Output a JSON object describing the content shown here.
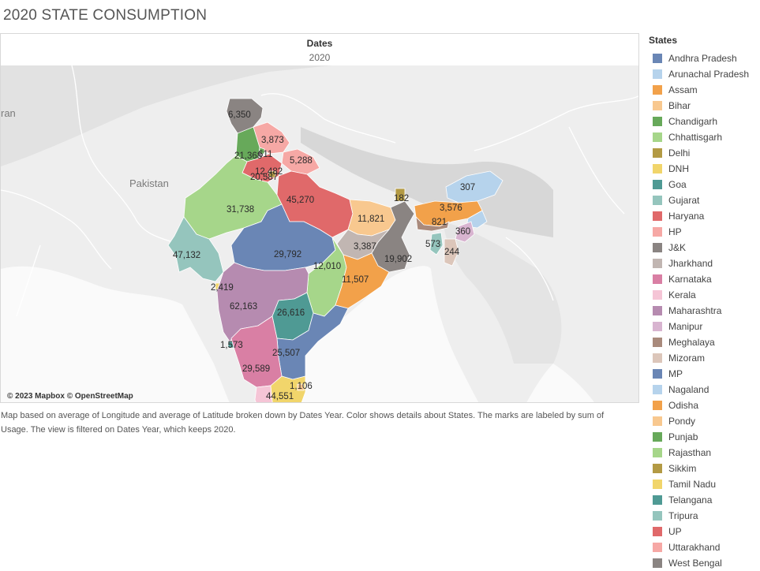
{
  "title": "2020 STATE CONSUMPTION",
  "header": {
    "dates_label": "Dates",
    "dates_value": "2020"
  },
  "map": {
    "country_labels": {
      "pakistan": "Pakistan",
      "iran_partial": "ran"
    },
    "attribution": "© 2023 Mapbox © OpenStreetMap"
  },
  "caption": "Map based on average of Longitude and average of Latitude broken down by Dates Year.  Color shows details about States.  The marks are labeled by sum of Usage. The view is filtered on Dates Year, which keeps 2020.",
  "legend": {
    "title": "States",
    "items": [
      {
        "name": "Andhra Pradesh",
        "color": "#6a86b5"
      },
      {
        "name": "Arunachal Pradesh",
        "color": "#b6d3ec"
      },
      {
        "name": "Assam",
        "color": "#f2a14a"
      },
      {
        "name": "Bihar",
        "color": "#f8c88f"
      },
      {
        "name": "Chandigarh",
        "color": "#67a95a"
      },
      {
        "name": "Chhattisgarh",
        "color": "#a6d68a"
      },
      {
        "name": "Delhi",
        "color": "#b39a44"
      },
      {
        "name": "DNH",
        "color": "#f1d56b"
      },
      {
        "name": "Goa",
        "color": "#4f9a94"
      },
      {
        "name": "Gujarat",
        "color": "#95c5bd"
      },
      {
        "name": "Haryana",
        "color": "#e0696a"
      },
      {
        "name": "HP",
        "color": "#f6a8a5"
      },
      {
        "name": "J&K",
        "color": "#8a8482"
      },
      {
        "name": "Jharkhand",
        "color": "#c1b6b2"
      },
      {
        "name": "Karnataka",
        "color": "#d97fa4"
      },
      {
        "name": "Kerala",
        "color": "#f5c5d6"
      },
      {
        "name": "Maharashtra",
        "color": "#b68bb0"
      },
      {
        "name": "Manipur",
        "color": "#d8b4d0"
      },
      {
        "name": "Meghalaya",
        "color": "#a98a7c"
      },
      {
        "name": "Mizoram",
        "color": "#dcc6ba"
      },
      {
        "name": "MP",
        "color": "#6a86b5"
      },
      {
        "name": "Nagaland",
        "color": "#b6d3ec"
      },
      {
        "name": "Odisha",
        "color": "#f2a14a"
      },
      {
        "name": "Pondy",
        "color": "#f8c88f"
      },
      {
        "name": "Punjab",
        "color": "#67a95a"
      },
      {
        "name": "Rajasthan",
        "color": "#a6d68a"
      },
      {
        "name": "Sikkim",
        "color": "#b39a44"
      },
      {
        "name": "Tamil Nadu",
        "color": "#f1d56b"
      },
      {
        "name": "Telangana",
        "color": "#4f9a94"
      },
      {
        "name": "Tripura",
        "color": "#95c5bd"
      },
      {
        "name": "UP",
        "color": "#e0696a"
      },
      {
        "name": "Uttarakhand",
        "color": "#f6a8a5"
      },
      {
        "name": "West Bengal",
        "color": "#8a8482"
      }
    ]
  },
  "usage_labels": {
    "jk": "6,350",
    "hp": "3,873",
    "punjab": "21,368",
    "chandigarh": "611",
    "uttarakhand": "5,288",
    "haryana": "12,482",
    "delhi": "20,587",
    "rajasthan": "31,738",
    "up": "45,270",
    "sikkim": "182",
    "arunachal": "307",
    "assam": "3,576",
    "bihar": "11,821",
    "meghalaya": "821",
    "nagaland": "360",
    "tripura": "573",
    "mizoram": "244",
    "gujarat": "47,132",
    "mp": "29,792",
    "jharkhand": "3,387",
    "west_bengal": "19,902",
    "chhattisgarh": "12,010",
    "odisha": "11,507",
    "dnh": "2,419",
    "maharashtra": "62,163",
    "telangana": "26,616",
    "goa": "1,573",
    "andhra": "25,507",
    "karnataka": "29,589",
    "pondy": "1,106",
    "tamil_nadu": "44,551"
  }
}
